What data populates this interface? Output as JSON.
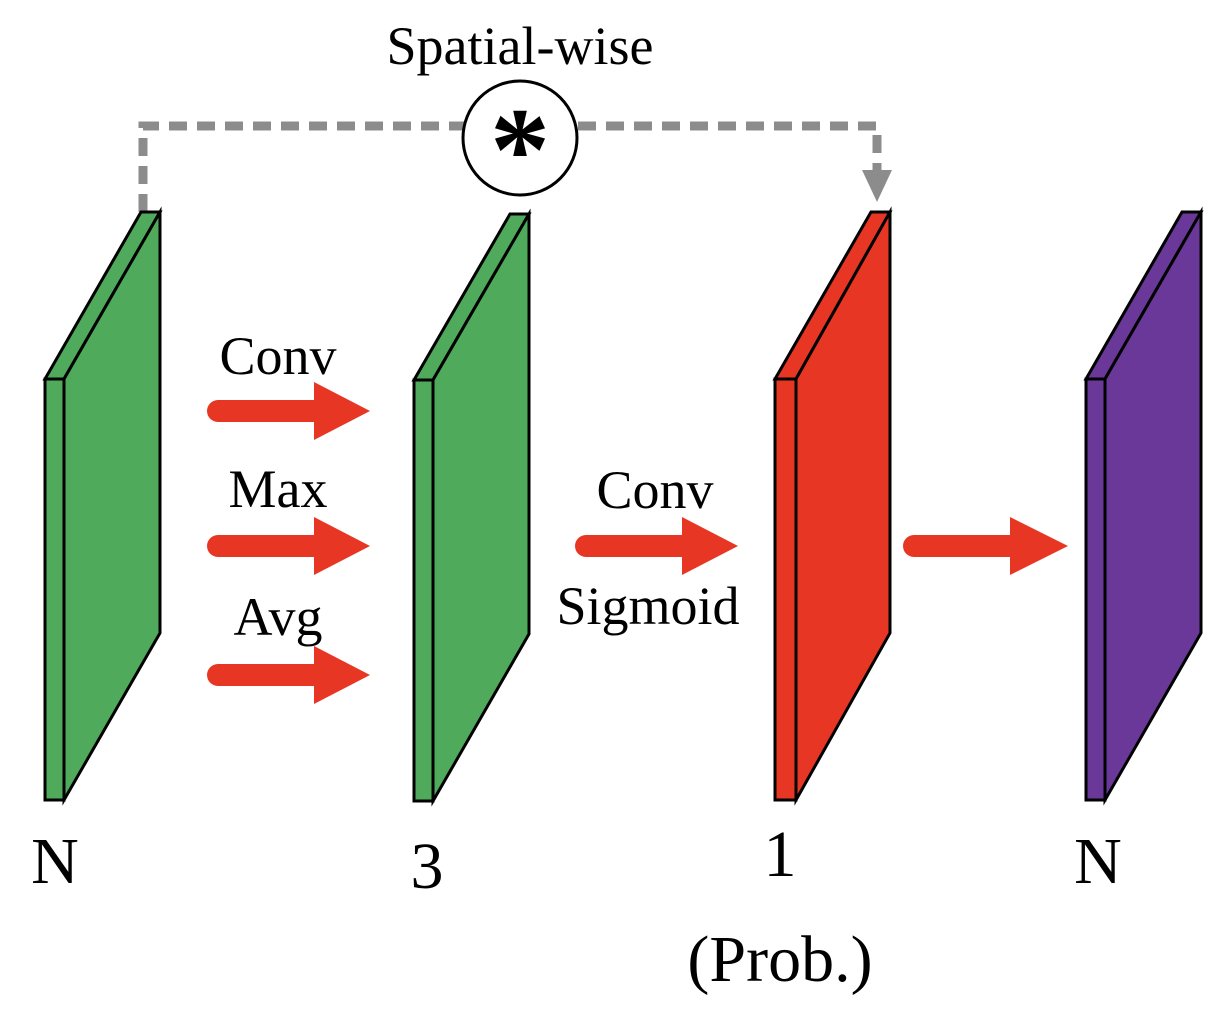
{
  "title": "Spatial-wise",
  "operator": {
    "symbol": "*",
    "icon": "multiply-asterisk-icon"
  },
  "colors": {
    "green": "#4faa5c",
    "red": "#e83625",
    "purple": "#6a3898",
    "arrow": "#e83625",
    "skip_line": "#8c8c8c",
    "outline": "#000000"
  },
  "layers": [
    {
      "id": "input",
      "label": "N",
      "sublabel": "",
      "color": "green"
    },
    {
      "id": "pooled",
      "label": "3",
      "sublabel": "",
      "color": "green"
    },
    {
      "id": "attention-map",
      "label": "1",
      "sublabel": "(Prob.)",
      "color": "red"
    },
    {
      "id": "output",
      "label": "N",
      "sublabel": "",
      "color": "purple"
    }
  ],
  "ops": {
    "stage1": [
      "Conv",
      "Max",
      "Avg"
    ],
    "stage2_top": "Conv",
    "stage2_bottom": "Sigmoid"
  }
}
